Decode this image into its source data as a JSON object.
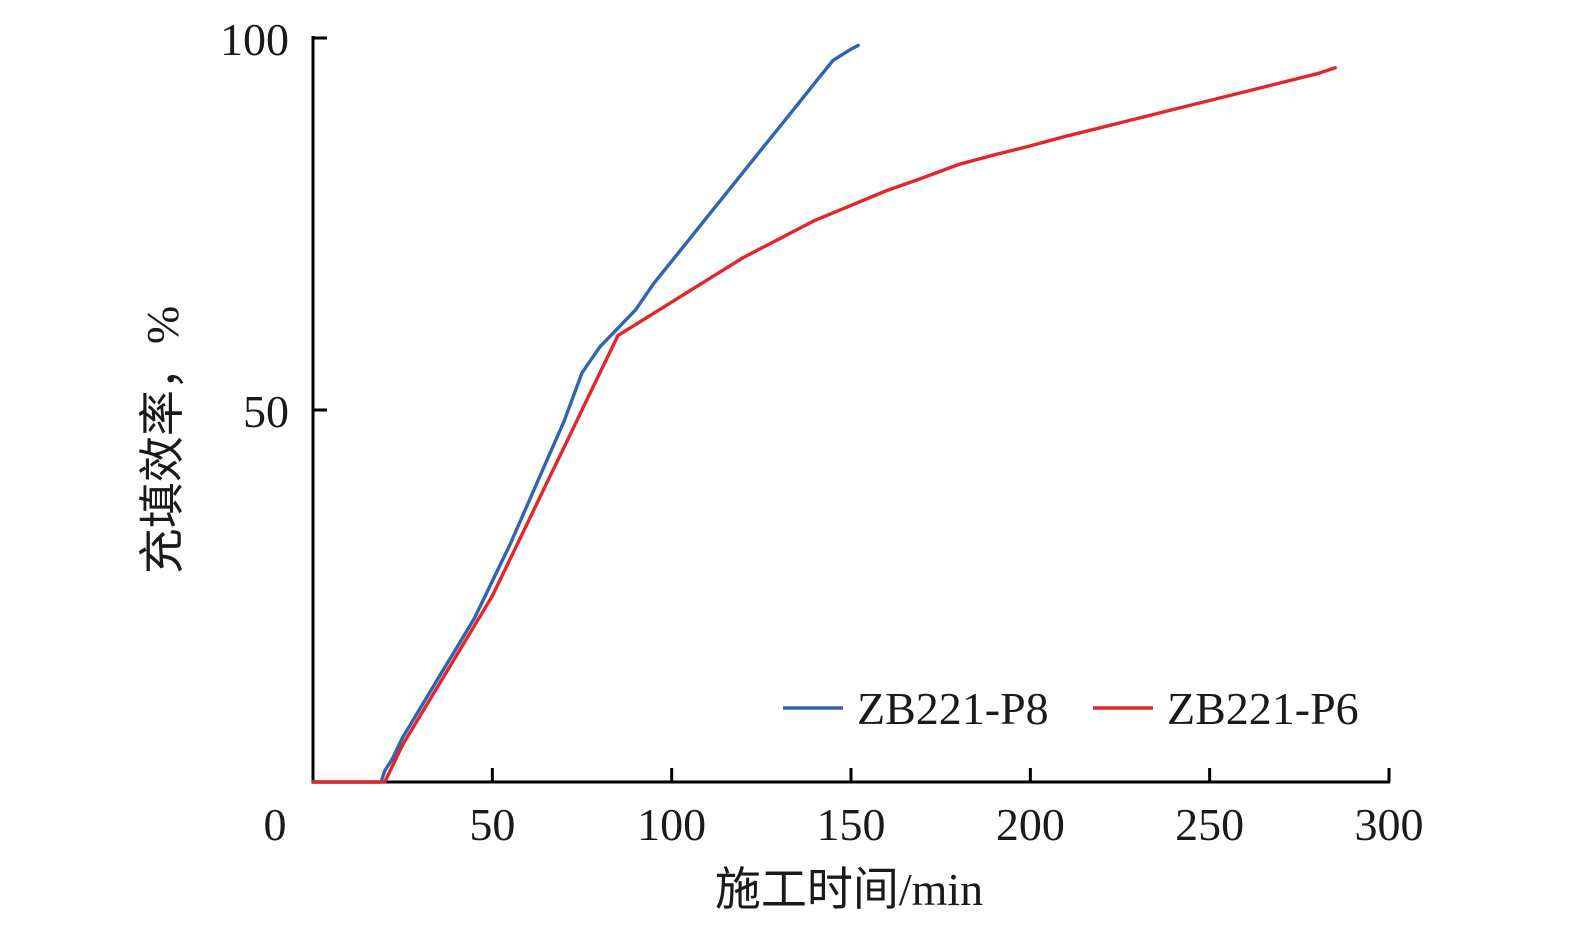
{
  "chart_data": {
    "type": "line",
    "title": "",
    "xlabel": "施工时间/min",
    "ylabel": "充填效率，%",
    "xlim": [
      0,
      300
    ],
    "ylim": [
      0,
      100
    ],
    "x_ticks": [
      0,
      50,
      100,
      150,
      200,
      250,
      300
    ],
    "x_tick_labels": [
      "0",
      "50",
      "100",
      "150",
      "200",
      "250",
      "300"
    ],
    "y_ticks": [
      50,
      100
    ],
    "y_tick_labels": [
      "50",
      "100"
    ],
    "grid": false,
    "legend_position": "bottom-right",
    "series": [
      {
        "name": "ZB221-P8",
        "color": "#2e64b0",
        "points": [
          [
            0,
            0
          ],
          [
            18,
            0
          ],
          [
            19,
            0
          ],
          [
            20,
            1.5
          ],
          [
            22,
            3
          ],
          [
            25,
            6
          ],
          [
            30,
            10
          ],
          [
            35,
            14
          ],
          [
            40,
            18
          ],
          [
            45,
            22
          ],
          [
            50,
            27
          ],
          [
            55,
            32
          ],
          [
            60,
            37.5
          ],
          [
            65,
            43
          ],
          [
            70,
            48.5
          ],
          [
            75,
            55
          ],
          [
            80,
            58.5
          ],
          [
            85,
            61
          ],
          [
            90,
            63.5
          ],
          [
            95,
            67
          ],
          [
            100,
            70
          ],
          [
            105,
            73
          ],
          [
            110,
            76
          ],
          [
            115,
            79
          ],
          [
            120,
            82
          ],
          [
            125,
            85
          ],
          [
            130,
            88
          ],
          [
            135,
            91
          ],
          [
            140,
            94
          ],
          [
            145,
            97
          ],
          [
            150,
            98.5
          ],
          [
            152,
            99
          ]
        ]
      },
      {
        "name": "ZB221-P6",
        "color": "#e2262c",
        "points": [
          [
            0,
            0
          ],
          [
            19,
            0
          ],
          [
            20,
            0
          ],
          [
            22,
            2
          ],
          [
            25,
            5
          ],
          [
            30,
            9
          ],
          [
            35,
            13
          ],
          [
            40,
            17
          ],
          [
            45,
            21
          ],
          [
            50,
            25
          ],
          [
            55,
            30
          ],
          [
            60,
            35
          ],
          [
            65,
            40
          ],
          [
            70,
            45
          ],
          [
            75,
            50
          ],
          [
            80,
            55
          ],
          [
            85,
            60
          ],
          [
            90,
            61.5
          ],
          [
            95,
            63
          ],
          [
            100,
            64.5
          ],
          [
            110,
            67.5
          ],
          [
            120,
            70.5
          ],
          [
            130,
            73
          ],
          [
            140,
            75.5
          ],
          [
            150,
            77.5
          ],
          [
            160,
            79.5
          ],
          [
            170,
            81.2
          ],
          [
            180,
            83
          ],
          [
            190,
            84.3
          ],
          [
            200,
            85.5
          ],
          [
            210,
            86.8
          ],
          [
            220,
            88
          ],
          [
            230,
            89.2
          ],
          [
            240,
            90.4
          ],
          [
            250,
            91.6
          ],
          [
            260,
            92.8
          ],
          [
            270,
            94
          ],
          [
            280,
            95.2
          ],
          [
            285,
            96
          ]
        ]
      }
    ]
  }
}
